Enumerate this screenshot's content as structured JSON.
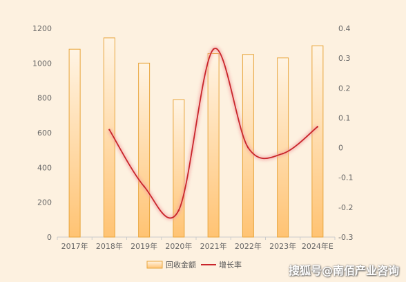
{
  "chart_data": {
    "type": "bar",
    "categories": [
      "2017年",
      "2018年",
      "2019年",
      "2020年",
      "2021年",
      "2022年",
      "2023年",
      "2024年E"
    ],
    "series": [
      {
        "name": "回收金额",
        "type": "bar",
        "axis": "left",
        "color": "#f5b040",
        "values": [
          1080,
          1145,
          1000,
          790,
          1055,
          1050,
          1030,
          1100
        ]
      },
      {
        "name": "增长率",
        "type": "line",
        "axis": "right",
        "color": "#c9252b",
        "values": [
          null,
          0.06,
          -0.13,
          -0.21,
          0.33,
          0.0,
          -0.02,
          0.07
        ]
      }
    ],
    "ylim_left": [
      0,
      1200
    ],
    "yticks_left": [
      0,
      200,
      400,
      600,
      800,
      1000,
      1200
    ],
    "ylim_right": [
      -0.3,
      0.4
    ],
    "yticks_right": [
      -0.3,
      -0.2,
      -0.1,
      0,
      0.1,
      0.2,
      0.3,
      0.4
    ],
    "title": "",
    "xlabel": "",
    "ylabel": "",
    "grid": false,
    "legend_position": "bottom-center"
  },
  "watermark": "搜狐号@南佰产业咨询"
}
